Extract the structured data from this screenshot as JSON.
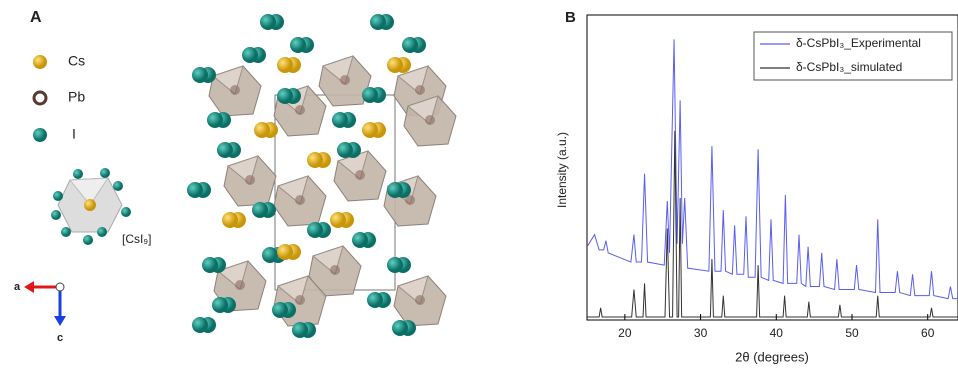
{
  "panel_a": {
    "label": "A",
    "legend": [
      "Cs",
      "Pb",
      "I"
    ],
    "polyhedron": "[CsI₉]",
    "axes": [
      "a",
      "c"
    ]
  },
  "chart_data": {
    "type": "line",
    "panel_label": "B",
    "xlabel": "2θ (degrees)",
    "ylabel": "Intensity (a.u.)",
    "xlim": [
      15,
      64
    ],
    "ylim": [
      0,
      100
    ],
    "xticks": [
      20,
      30,
      40,
      50,
      60
    ],
    "legend": "upper right",
    "series": [
      {
        "name": "δ-CsPbI₃_Experimental",
        "color": "#5a5ef0",
        "x": [
          15,
          16,
          16.6,
          17.2,
          17.5,
          17.8,
          20.8,
          21.2,
          21.5,
          22.2,
          22.6,
          23,
          25.2,
          25.6,
          25.9,
          26.5,
          26.9,
          27.3,
          27.6,
          27.9,
          28.3,
          31.1,
          31.5,
          31.9,
          32.7,
          33,
          33.3,
          34.2,
          34.5,
          34.8,
          35.7,
          36,
          36.3,
          37.2,
          37.6,
          38,
          39,
          39.3,
          39.6,
          40.9,
          41.2,
          41.5,
          42.7,
          43,
          43.3,
          43.9,
          44.2,
          44.5,
          45.7,
          46,
          46.3,
          47.7,
          48,
          48.3,
          50.3,
          50.6,
          50.9,
          53.1,
          53.4,
          53.7,
          55.7,
          56,
          56.3,
          57.7,
          58,
          58.3,
          60.2,
          60.5,
          60.8,
          62.7,
          63,
          63.3,
          64
        ],
        "values": [
          24,
          28,
          23,
          23,
          26,
          22,
          19,
          28,
          19,
          19,
          48,
          19,
          18,
          39,
          22,
          92,
          25,
          72,
          25,
          40,
          17,
          16,
          57,
          16,
          16,
          36,
          16,
          15,
          31,
          15,
          15,
          34,
          14,
          14,
          56,
          14,
          13,
          33,
          13,
          12,
          41,
          12,
          12,
          28,
          12,
          11,
          24,
          11,
          11,
          22,
          11,
          10,
          20,
          10,
          10,
          18,
          10,
          9,
          33,
          9,
          9,
          16,
          9,
          8,
          15,
          8,
          8,
          16,
          8,
          7,
          11,
          7,
          7
        ]
      },
      {
        "name": "δ-CsPbI₃_simulated",
        "color": "#333333",
        "x": [
          15,
          16.6,
          16.8,
          17,
          20.9,
          21.2,
          21.5,
          22.4,
          22.6,
          22.8,
          25.3,
          25.6,
          25.9,
          26.3,
          26.6,
          26.9,
          27.1,
          27.3,
          27.5,
          31.3,
          31.5,
          31.7,
          32.8,
          33,
          33.2,
          37.4,
          37.6,
          37.8,
          40.9,
          41.1,
          41.3,
          44.1,
          44.3,
          44.5,
          48.2,
          48.4,
          48.6,
          53.2,
          53.4,
          53.6,
          60.3,
          60.5,
          60.7,
          64
        ],
        "values": [
          1,
          1,
          4,
          1,
          1,
          10,
          1,
          1,
          12,
          1,
          1,
          30,
          1,
          1,
          62,
          1,
          1,
          40,
          1,
          1,
          20,
          1,
          1,
          8,
          1,
          1,
          18,
          1,
          1,
          8,
          1,
          1,
          6,
          1,
          1,
          5,
          1,
          1,
          8,
          1,
          1,
          4,
          1,
          1
        ]
      }
    ]
  }
}
